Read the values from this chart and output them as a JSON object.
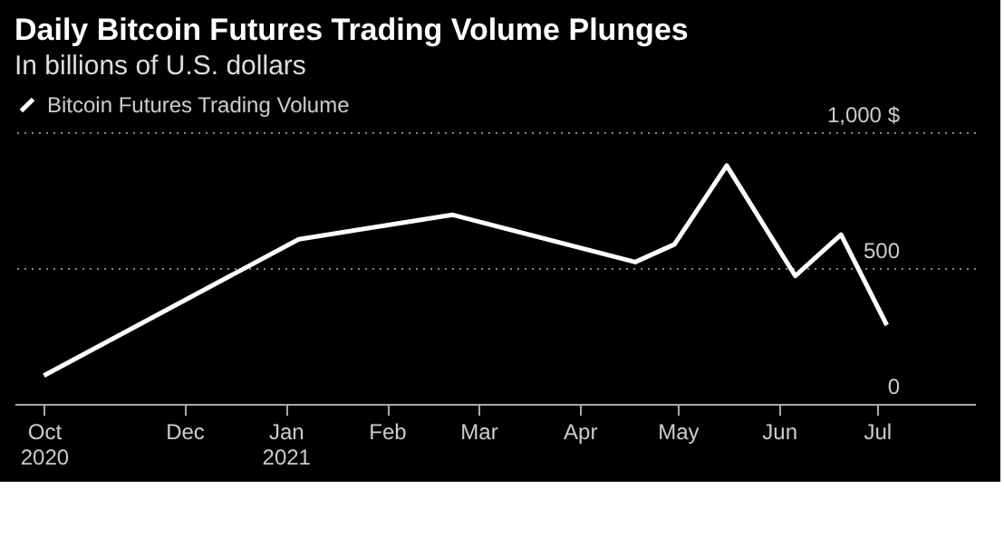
{
  "chart_data": {
    "type": "line",
    "title": "Daily Bitcoin Futures Trading Volume Plunges",
    "subtitle": "In billions of U.S. dollars",
    "x": [
      "2020-10-19",
      "2021-01-05",
      "2021-02-21",
      "2021-04-18",
      "2021-04-30",
      "2021-05-16",
      "2021-06-06",
      "2021-06-20",
      "2021-07-04"
    ],
    "series": [
      {
        "name": "Bitcoin Futures Trading Volume",
        "color": "#ffffff",
        "values": [
          104,
          606,
          696,
          522,
          587,
          877,
          471,
          623,
          290
        ]
      }
    ],
    "xlim": [
      "2020-10-10",
      "2021-07-31"
    ],
    "xticks": [
      {
        "value": "2020-10-19",
        "label": "Oct\n2020"
      },
      {
        "value": "2020-12-01",
        "label": "Dec"
      },
      {
        "value": "2021-01-01",
        "label": "Jan\n2021"
      },
      {
        "value": "2021-02-01",
        "label": "Feb"
      },
      {
        "value": "2021-03-01",
        "label": "Mar"
      },
      {
        "value": "2021-04-01",
        "label": "Apr"
      },
      {
        "value": "2021-05-01",
        "label": "May"
      },
      {
        "value": "2021-06-01",
        "label": "Jun"
      },
      {
        "value": "2021-07-01",
        "label": "Jul"
      }
    ],
    "ylim": [
      0,
      1000
    ],
    "yticks": [
      0,
      500,
      {
        "value": 1000,
        "label": "1,000 $"
      }
    ],
    "grid": "y",
    "legend": "top left",
    "marker": "none",
    "line_style": "solid"
  }
}
